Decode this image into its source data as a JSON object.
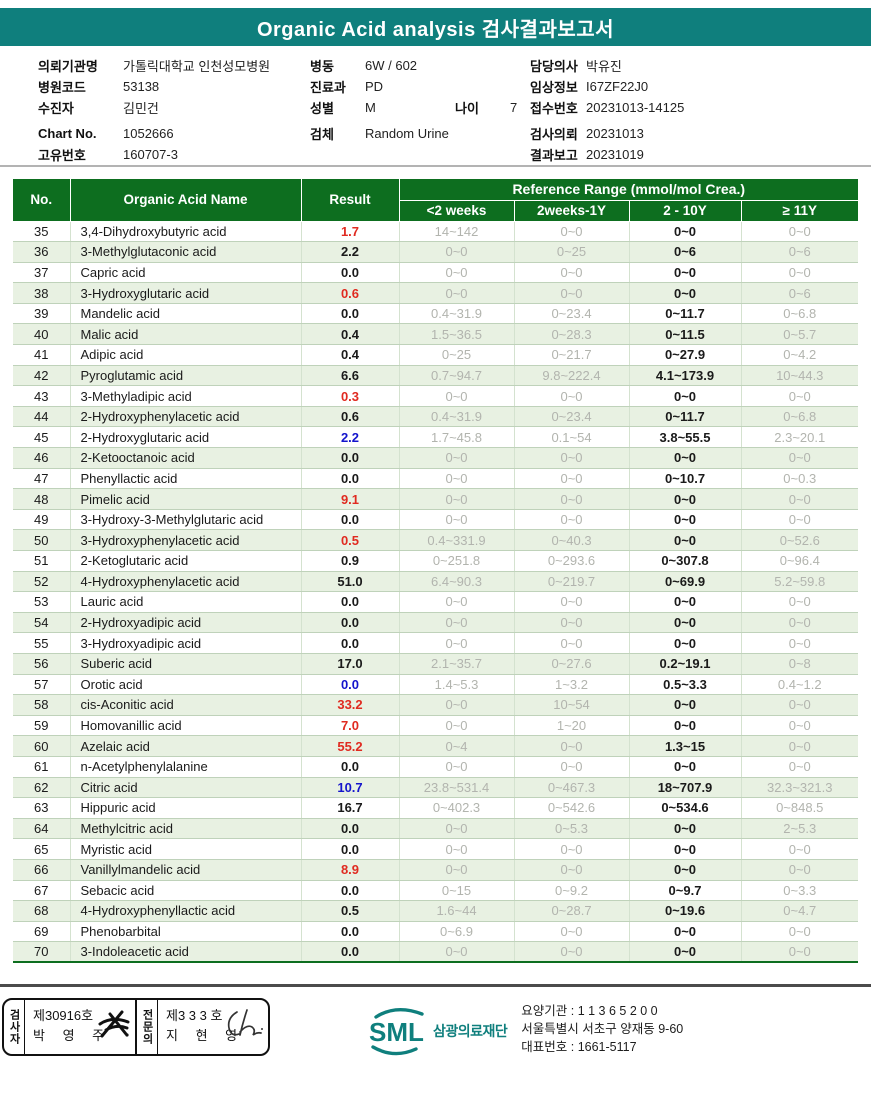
{
  "colors": {
    "teal": "#0F7F7D",
    "header_green": "#0D6E1F",
    "row_green": "#E8F1E2",
    "result_red": "#E02A20",
    "result_blue": "#1414CC",
    "reference_gray": "#B2B4AE"
  },
  "report": {
    "title": "Organic Acid analysis 검사결과보고서"
  },
  "patient_info": {
    "left": [
      {
        "label": "의뢰기관명",
        "value": "가톨릭대학교 인천성모병원"
      },
      {
        "label": "병원코드",
        "value": "53138"
      },
      {
        "label": "수진자",
        "value": "김민건"
      },
      {
        "label": "Chart No.",
        "value": "1052666"
      },
      {
        "label": "고유번호",
        "value": "160707-3"
      }
    ],
    "middle": [
      {
        "label": "병동",
        "value": "6W / 602"
      },
      {
        "label": "진료과",
        "value": "PD"
      },
      {
        "label": "성별",
        "value": "M",
        "label2": "나이",
        "value2": "7"
      },
      {
        "label": "검체",
        "value": "Random Urine"
      }
    ],
    "right": [
      {
        "label": "담당의사",
        "value": "박유진"
      },
      {
        "label": "임상정보",
        "value": "I67ZF22J0"
      },
      {
        "label": "접수번호",
        "value": "20231013-14125"
      },
      {
        "label": "검사의뢰",
        "value": "20231013"
      },
      {
        "label": "결과보고",
        "value": "20231019"
      }
    ]
  },
  "table": {
    "headers": {
      "no": "No.",
      "name": "Organic Acid Name",
      "result": "Result",
      "reference_range": "Reference Range (mmol/mol Crea.)",
      "sub": [
        "<2 weeks",
        "2weeks-1Y",
        "2 - 10Y",
        "≥ 11Y"
      ]
    },
    "rows": [
      {
        "no": 35,
        "name": "3,4-Dihydroxybutyric acid",
        "result": "1.7",
        "result_color": "red",
        "ranges": [
          "14~142",
          "0~0",
          "0~0",
          "0~0"
        ]
      },
      {
        "no": 36,
        "name": "3-Methylglutaconic acid",
        "result": "2.2",
        "result_color": "black",
        "ranges": [
          "0~0",
          "0~25",
          "0~6",
          "0~6"
        ]
      },
      {
        "no": 37,
        "name": "Capric acid",
        "result": "0.0",
        "result_color": "black",
        "ranges": [
          "0~0",
          "0~0",
          "0~0",
          "0~0"
        ]
      },
      {
        "no": 38,
        "name": "3-Hydroxyglutaric acid",
        "result": "0.6",
        "result_color": "red",
        "ranges": [
          "0~0",
          "0~0",
          "0~0",
          "0~6"
        ]
      },
      {
        "no": 39,
        "name": "Mandelic acid",
        "result": "0.0",
        "result_color": "black",
        "ranges": [
          "0.4~31.9",
          "0~23.4",
          "0~11.7",
          "0~6.8"
        ]
      },
      {
        "no": 40,
        "name": "Malic acid",
        "result": "0.4",
        "result_color": "black",
        "ranges": [
          "1.5~36.5",
          "0~28.3",
          "0~11.5",
          "0~5.7"
        ]
      },
      {
        "no": 41,
        "name": "Adipic acid",
        "result": "0.4",
        "result_color": "black",
        "ranges": [
          "0~25",
          "0~21.7",
          "0~27.9",
          "0~4.2"
        ]
      },
      {
        "no": 42,
        "name": "Pyroglutamic acid",
        "result": "6.6",
        "result_color": "black",
        "ranges": [
          "0.7~94.7",
          "9.8~222.4",
          "4.1~173.9",
          "10~44.3"
        ]
      },
      {
        "no": 43,
        "name": "3-Methyladipic acid",
        "result": "0.3",
        "result_color": "red",
        "ranges": [
          "0~0",
          "0~0",
          "0~0",
          "0~0"
        ]
      },
      {
        "no": 44,
        "name": "2-Hydroxyphenylacetic acid",
        "result": "0.6",
        "result_color": "black",
        "ranges": [
          "0.4~31.9",
          "0~23.4",
          "0~11.7",
          "0~6.8"
        ]
      },
      {
        "no": 45,
        "name": "2-Hydroxyglutaric acid",
        "result": "2.2",
        "result_color": "blue",
        "ranges": [
          "1.7~45.8",
          "0.1~54",
          "3.8~55.5",
          "2.3~20.1"
        ]
      },
      {
        "no": 46,
        "name": "2-Ketooctanoic acid",
        "result": "0.0",
        "result_color": "black",
        "ranges": [
          "0~0",
          "0~0",
          "0~0",
          "0~0"
        ]
      },
      {
        "no": 47,
        "name": "Phenyllactic acid",
        "result": "0.0",
        "result_color": "black",
        "ranges": [
          "0~0",
          "0~0",
          "0~10.7",
          "0~0.3"
        ]
      },
      {
        "no": 48,
        "name": "Pimelic acid",
        "result": "9.1",
        "result_color": "red",
        "ranges": [
          "0~0",
          "0~0",
          "0~0",
          "0~0"
        ]
      },
      {
        "no": 49,
        "name": "3-Hydroxy-3-Methylglutaric acid",
        "result": "0.0",
        "result_color": "black",
        "ranges": [
          "0~0",
          "0~0",
          "0~0",
          "0~0"
        ]
      },
      {
        "no": 50,
        "name": "3-Hydroxyphenylacetic acid",
        "result": "0.5",
        "result_color": "red",
        "ranges": [
          "0.4~331.9",
          "0~40.3",
          "0~0",
          "0~52.6"
        ]
      },
      {
        "no": 51,
        "name": "2-Ketoglutaric acid",
        "result": "0.9",
        "result_color": "black",
        "ranges": [
          "0~251.8",
          "0~293.6",
          "0~307.8",
          "0~96.4"
        ]
      },
      {
        "no": 52,
        "name": "4-Hydroxyphenylacetic acid",
        "result": "51.0",
        "result_color": "black",
        "ranges": [
          "6.4~90.3",
          "0~219.7",
          "0~69.9",
          "5.2~59.8"
        ]
      },
      {
        "no": 53,
        "name": "Lauric acid",
        "result": "0.0",
        "result_color": "black",
        "ranges": [
          "0~0",
          "0~0",
          "0~0",
          "0~0"
        ]
      },
      {
        "no": 54,
        "name": "2-Hydroxyadipic acid",
        "result": "0.0",
        "result_color": "black",
        "ranges": [
          "0~0",
          "0~0",
          "0~0",
          "0~0"
        ]
      },
      {
        "no": 55,
        "name": "3-Hydroxyadipic acid",
        "result": "0.0",
        "result_color": "black",
        "ranges": [
          "0~0",
          "0~0",
          "0~0",
          "0~0"
        ]
      },
      {
        "no": 56,
        "name": "Suberic acid",
        "result": "17.0",
        "result_color": "black",
        "ranges": [
          "2.1~35.7",
          "0~27.6",
          "0.2~19.1",
          "0~8"
        ]
      },
      {
        "no": 57,
        "name": "Orotic acid",
        "result": "0.0",
        "result_color": "blue",
        "ranges": [
          "1.4~5.3",
          "1~3.2",
          "0.5~3.3",
          "0.4~1.2"
        ]
      },
      {
        "no": 58,
        "name": "cis-Aconitic acid",
        "result": "33.2",
        "result_color": "red",
        "ranges": [
          "0~0",
          "10~54",
          "0~0",
          "0~0"
        ]
      },
      {
        "no": 59,
        "name": "Homovanillic acid",
        "result": "7.0",
        "result_color": "red",
        "ranges": [
          "0~0",
          "1~20",
          "0~0",
          "0~0"
        ]
      },
      {
        "no": 60,
        "name": "Azelaic acid",
        "result": "55.2",
        "result_color": "red",
        "ranges": [
          "0~4",
          "0~0",
          "1.3~15",
          "0~0"
        ]
      },
      {
        "no": 61,
        "name": "n-Acetylphenylalanine",
        "result": "0.0",
        "result_color": "black",
        "ranges": [
          "0~0",
          "0~0",
          "0~0",
          "0~0"
        ]
      },
      {
        "no": 62,
        "name": "Citric acid",
        "result": "10.7",
        "result_color": "blue",
        "ranges": [
          "23.8~531.4",
          "0~467.3",
          "18~707.9",
          "32.3~321.3"
        ]
      },
      {
        "no": 63,
        "name": "Hippuric acid",
        "result": "16.7",
        "result_color": "black",
        "ranges": [
          "0~402.3",
          "0~542.6",
          "0~534.6",
          "0~848.5"
        ]
      },
      {
        "no": 64,
        "name": "Methylcitric acid",
        "result": "0.0",
        "result_color": "black",
        "ranges": [
          "0~0",
          "0~5.3",
          "0~0",
          "2~5.3"
        ]
      },
      {
        "no": 65,
        "name": "Myristic acid",
        "result": "0.0",
        "result_color": "black",
        "ranges": [
          "0~0",
          "0~0",
          "0~0",
          "0~0"
        ]
      },
      {
        "no": 66,
        "name": "Vanillylmandelic acid",
        "result": "8.9",
        "result_color": "red",
        "ranges": [
          "0~0",
          "0~0",
          "0~0",
          "0~0"
        ]
      },
      {
        "no": 67,
        "name": "Sebacic acid",
        "result": "0.0",
        "result_color": "black",
        "ranges": [
          "0~15",
          "0~9.2",
          "0~9.7",
          "0~3.3"
        ]
      },
      {
        "no": 68,
        "name": "4-Hydroxyphenyllactic acid",
        "result": "0.5",
        "result_color": "black",
        "ranges": [
          "1.6~44",
          "0~28.7",
          "0~19.6",
          "0~4.7"
        ]
      },
      {
        "no": 69,
        "name": "Phenobarbital",
        "result": "0.0",
        "result_color": "black",
        "ranges": [
          "0~6.9",
          "0~0",
          "0~0",
          "0~0"
        ]
      },
      {
        "no": 70,
        "name": "3-Indoleacetic acid",
        "result": "0.0",
        "result_color": "black",
        "ranges": [
          "0~0",
          "0~0",
          "0~0",
          "0~0"
        ]
      }
    ]
  },
  "footer": {
    "examiner": {
      "role": "검사자",
      "cert_no": "제30916호",
      "name": "박 영 주"
    },
    "specialist": {
      "role": "전문의",
      "cert_no": "제3 3 3 호",
      "name": "지 현 영"
    },
    "logo_text": "SML",
    "org_name": "삼광의료재단",
    "lines": [
      "요양기관 : 1 1 3 6 5 2 0 0",
      "서울특별시 서초구 양재동 9-60",
      "대표번호 : 1661-5117"
    ]
  }
}
